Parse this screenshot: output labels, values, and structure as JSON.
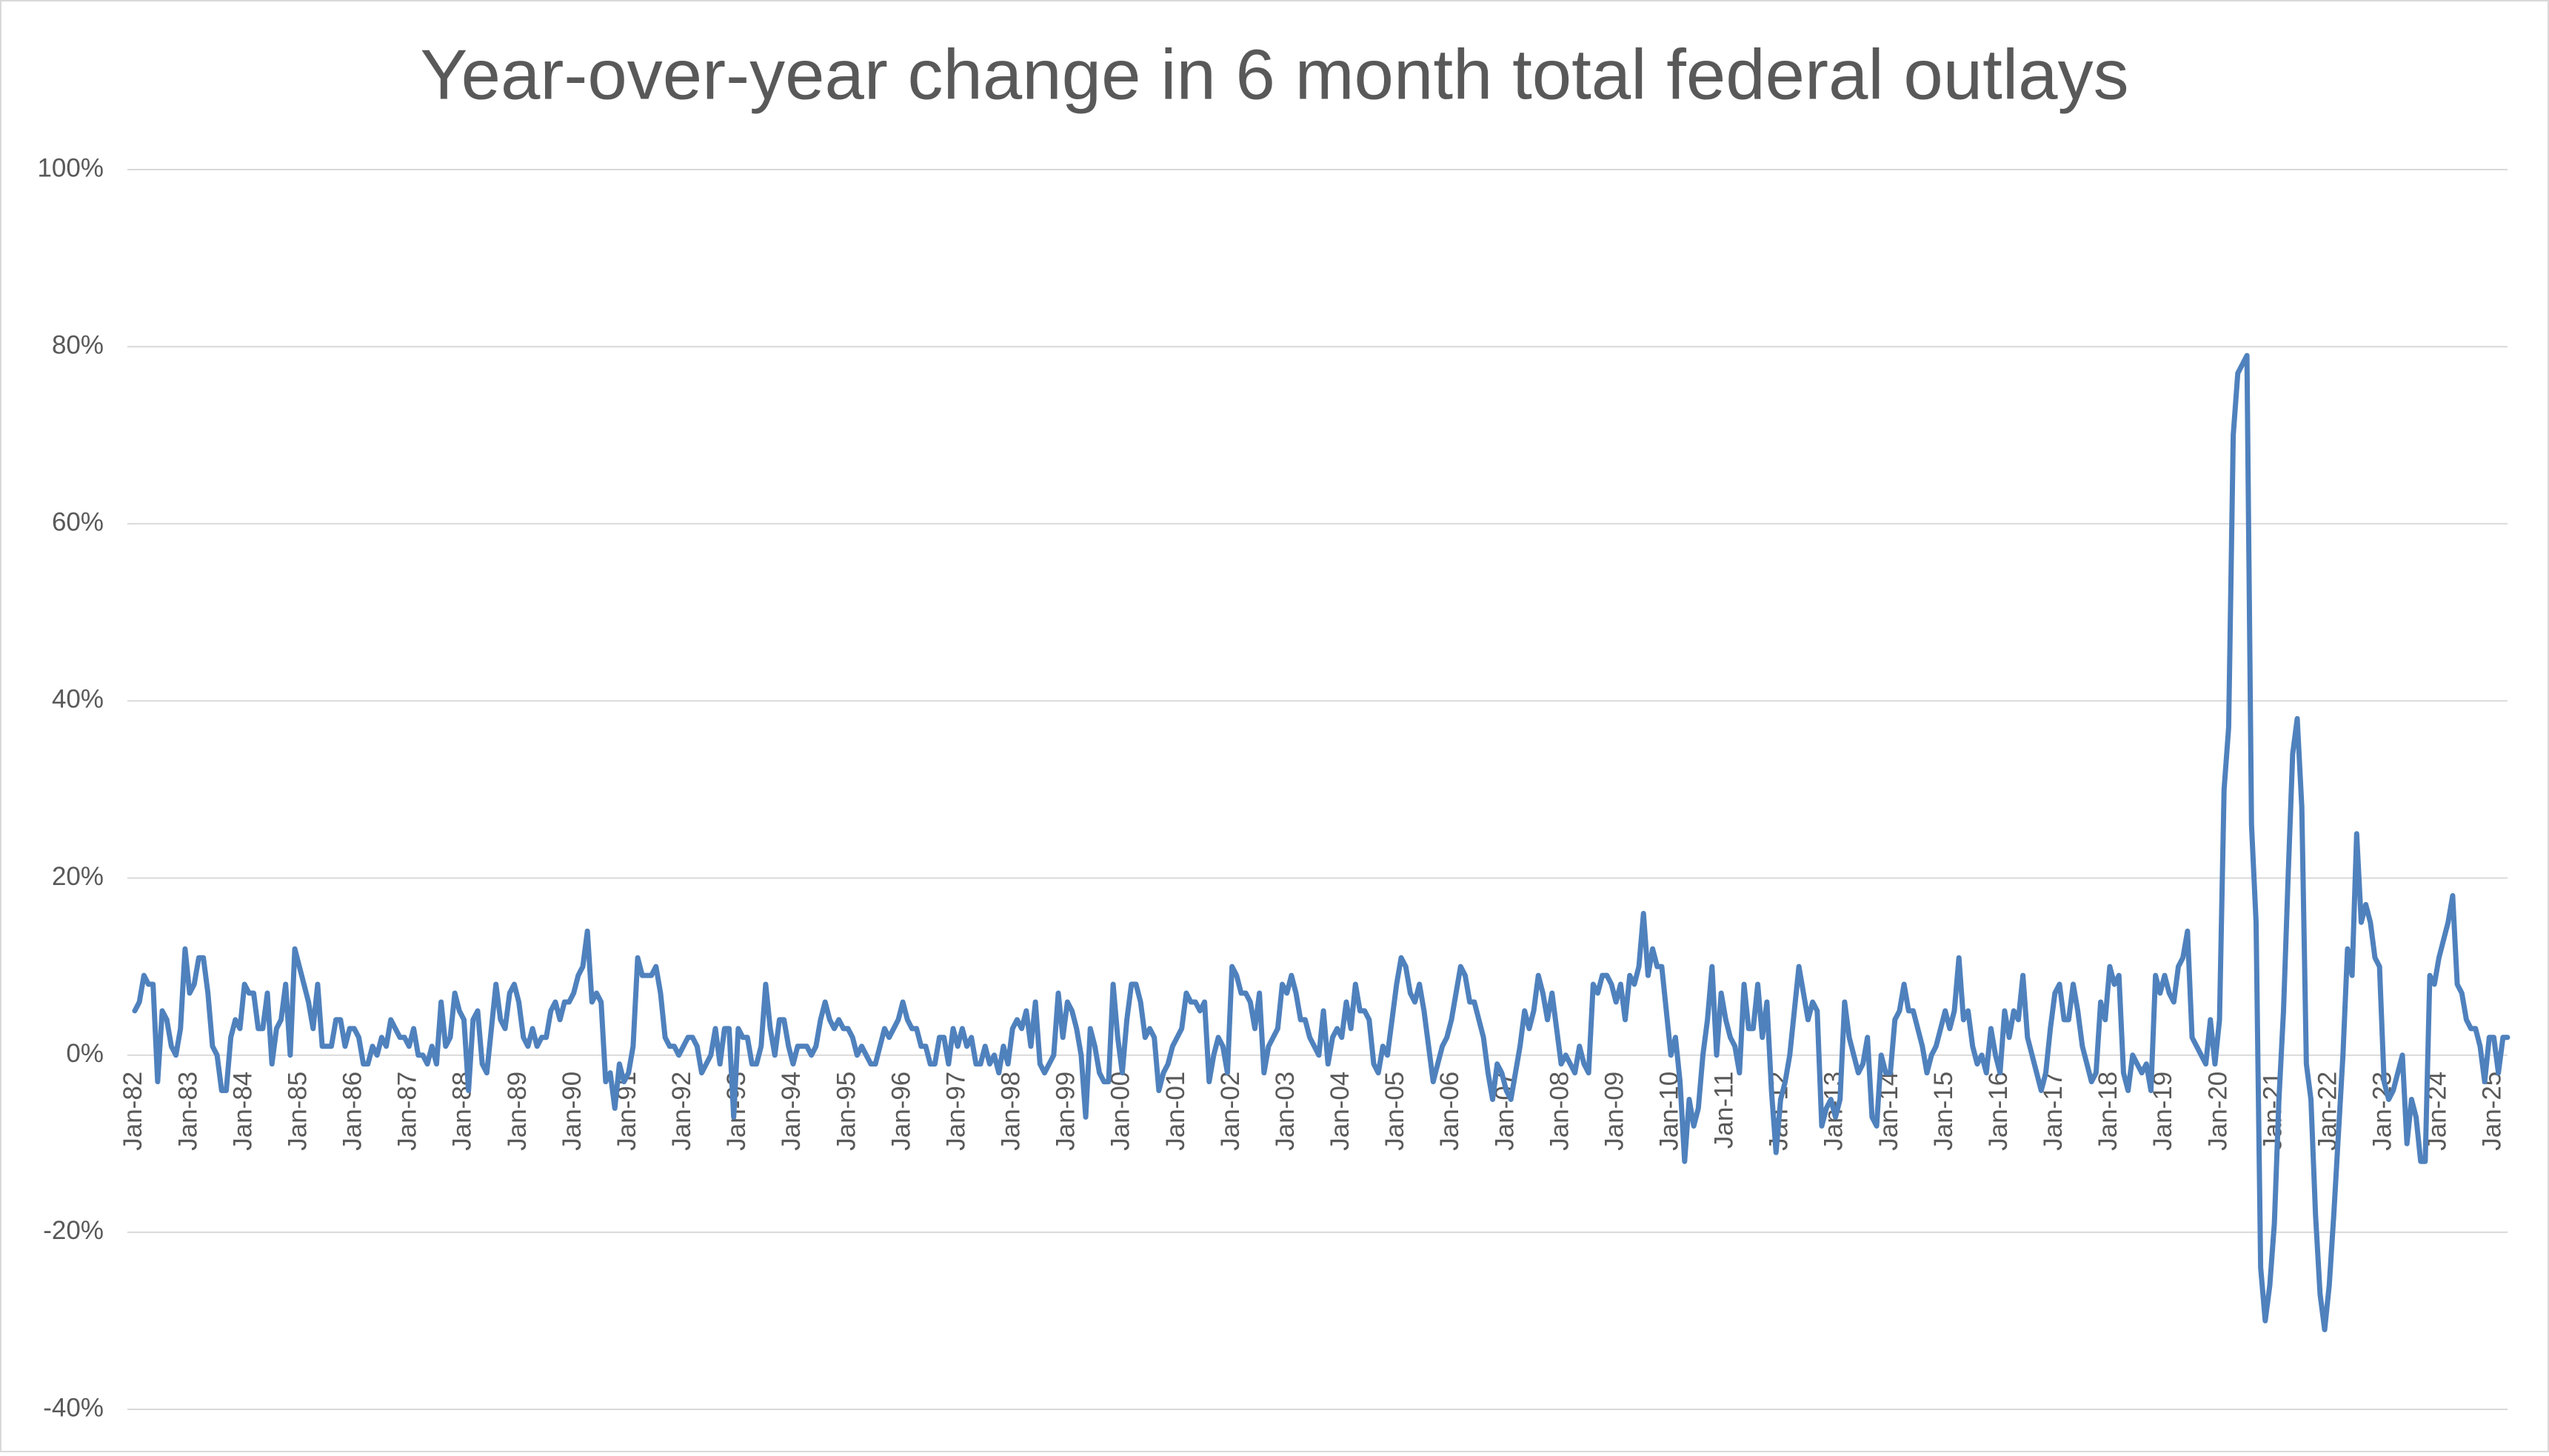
{
  "chart_data": {
    "type": "line",
    "title": "Year-over-year change in 6 month total federal outlays",
    "color": "#4f81bd",
    "grid": true,
    "ylim": [
      -40,
      100
    ],
    "yticks": [
      {
        "value": -40,
        "label": "-40%"
      },
      {
        "value": -20,
        "label": "-20%"
      },
      {
        "value": 0,
        "label": "0%"
      },
      {
        "value": 20,
        "label": "20%"
      },
      {
        "value": 40,
        "label": "40%"
      },
      {
        "value": 60,
        "label": "60%"
      },
      {
        "value": 80,
        "label": "80%"
      },
      {
        "value": 100,
        "label": "100%"
      }
    ],
    "categories": [
      "Jan-82",
      null,
      null,
      null,
      null,
      null,
      null,
      null,
      null,
      null,
      null,
      null,
      "Jan-83",
      null,
      null,
      null,
      null,
      null,
      null,
      null,
      null,
      null,
      null,
      null,
      "Jan-84",
      null,
      null,
      null,
      null,
      null,
      null,
      null,
      null,
      null,
      null,
      null,
      "Jan-85",
      null,
      null,
      null,
      null,
      null,
      null,
      null,
      null,
      null,
      null,
      null,
      "Jan-86",
      null,
      null,
      null,
      null,
      null,
      null,
      null,
      null,
      null,
      null,
      null,
      "Jan-87",
      null,
      null,
      null,
      null,
      null,
      null,
      null,
      null,
      null,
      null,
      null,
      "Jan-88",
      null,
      null,
      null,
      null,
      null,
      null,
      null,
      null,
      null,
      null,
      null,
      "Jan-89",
      null,
      null,
      null,
      null,
      null,
      null,
      null,
      null,
      null,
      null,
      null,
      "Jan-90",
      null,
      null,
      null,
      null,
      null,
      null,
      null,
      null,
      null,
      null,
      null,
      "Jan-91",
      null,
      null,
      null,
      null,
      null,
      null,
      null,
      null,
      null,
      null,
      null,
      "Jan-92",
      null,
      null,
      null,
      null,
      null,
      null,
      null,
      null,
      null,
      null,
      null,
      "Jan-93",
      null,
      null,
      null,
      null,
      null,
      null,
      null,
      null,
      null,
      null,
      null,
      "Jan-94",
      null,
      null,
      null,
      null,
      null,
      null,
      null,
      null,
      null,
      null,
      null,
      "Jan-95",
      null,
      null,
      null,
      null,
      null,
      null,
      null,
      null,
      null,
      null,
      null,
      "Jan-96",
      null,
      null,
      null,
      null,
      null,
      null,
      null,
      null,
      null,
      null,
      null,
      "Jan-97",
      null,
      null,
      null,
      null,
      null,
      null,
      null,
      null,
      null,
      null,
      null,
      "Jan-98",
      null,
      null,
      null,
      null,
      null,
      null,
      null,
      null,
      null,
      null,
      null,
      "Jan-99",
      null,
      null,
      null,
      null,
      null,
      null,
      null,
      null,
      null,
      null,
      null,
      "Jan-00",
      null,
      null,
      null,
      null,
      null,
      null,
      null,
      null,
      null,
      null,
      null,
      "Jan-01",
      null,
      null,
      null,
      null,
      null,
      null,
      null,
      null,
      null,
      null,
      null,
      "Jan-02",
      null,
      null,
      null,
      null,
      null,
      null,
      null,
      null,
      null,
      null,
      null,
      "Jan-03",
      null,
      null,
      null,
      null,
      null,
      null,
      null,
      null,
      null,
      null,
      null,
      "Jan-04",
      null,
      null,
      null,
      null,
      null,
      null,
      null,
      null,
      null,
      null,
      null,
      "Jan-05",
      null,
      null,
      null,
      null,
      null,
      null,
      null,
      null,
      null,
      null,
      null,
      "Jan-06",
      null,
      null,
      null,
      null,
      null,
      null,
      null,
      null,
      null,
      null,
      null,
      "Jan-07",
      null,
      null,
      null,
      null,
      null,
      null,
      null,
      null,
      null,
      null,
      null,
      "Jan-08",
      null,
      null,
      null,
      null,
      null,
      null,
      null,
      null,
      null,
      null,
      null,
      "Jan-09",
      null,
      null,
      null,
      null,
      null,
      null,
      null,
      null,
      null,
      null,
      null,
      "Jan-10",
      null,
      null,
      null,
      null,
      null,
      null,
      null,
      null,
      null,
      null,
      null,
      "Jan-11",
      null,
      null,
      null,
      null,
      null,
      null,
      null,
      null,
      null,
      null,
      null,
      "Jan-12",
      null,
      null,
      null,
      null,
      null,
      null,
      null,
      null,
      null,
      null,
      null,
      "Jan-13",
      null,
      null,
      null,
      null,
      null,
      null,
      null,
      null,
      null,
      null,
      null,
      "Jan-14",
      null,
      null,
      null,
      null,
      null,
      null,
      null,
      null,
      null,
      null,
      null,
      "Jan-15",
      null,
      null,
      null,
      null,
      null,
      null,
      null,
      null,
      null,
      null,
      null,
      "Jan-16",
      null,
      null,
      null,
      null,
      null,
      null,
      null,
      null,
      null,
      null,
      null,
      "Jan-17",
      null,
      null,
      null,
      null,
      null,
      null,
      null,
      null,
      null,
      null,
      null,
      "Jan-18",
      null,
      null,
      null,
      null,
      null,
      null,
      null,
      null,
      null,
      null,
      null,
      "Jan-19",
      null,
      null,
      null,
      null,
      null,
      null,
      null,
      null,
      null,
      null,
      null,
      "Jan-20",
      null,
      null,
      null,
      null,
      null,
      null,
      null,
      null,
      null,
      null,
      null,
      "Jan-21",
      null,
      null,
      null,
      null,
      null,
      null,
      null,
      null,
      null,
      null,
      null,
      "Jan-22",
      null,
      null,
      null,
      null,
      null,
      null,
      null,
      null,
      null,
      null,
      null,
      "Jan-23",
      null,
      null,
      null,
      null,
      null,
      null,
      null,
      null,
      null,
      null,
      null,
      "Jan-24",
      null,
      null,
      null,
      null,
      null,
      null,
      null,
      null,
      null,
      null,
      null,
      "Jan-25",
      null,
      null,
      null
    ],
    "values": [
      5,
      6,
      9,
      8,
      8,
      -3,
      5,
      4,
      1,
      0,
      3,
      12,
      7,
      8,
      11,
      11,
      7,
      1,
      0,
      -4,
      -4,
      2,
      4,
      3,
      8,
      7,
      7,
      3,
      3,
      7,
      -1,
      3,
      4,
      8,
      0,
      12,
      10,
      8,
      6,
      3,
      8,
      1,
      1,
      1,
      4,
      4,
      1,
      3,
      3,
      2,
      -1,
      -1,
      1,
      0,
      2,
      1,
      4,
      3,
      2,
      2,
      1,
      3,
      0,
      0,
      -1,
      1,
      -1,
      6,
      1,
      2,
      7,
      5,
      4,
      -4,
      4,
      5,
      -1,
      -2,
      3,
      8,
      4,
      3,
      7,
      8,
      6,
      2,
      1,
      3,
      1,
      2,
      2,
      5,
      6,
      4,
      6,
      6,
      7,
      9,
      10,
      14,
      6,
      7,
      6,
      -3,
      -2,
      -6,
      -1,
      -3,
      -2,
      1,
      11,
      9,
      9,
      9,
      10,
      7,
      2,
      1,
      1,
      0,
      1,
      2,
      2,
      1,
      -2,
      -1,
      0,
      3,
      -1,
      3,
      3,
      -7,
      3,
      2,
      2,
      -1,
      -1,
      1,
      8,
      3,
      0,
      4,
      4,
      1,
      -1,
      1,
      1,
      1,
      0,
      1,
      4,
      6,
      4,
      3,
      4,
      3,
      3,
      2,
      0,
      1,
      0,
      -1,
      -1,
      1,
      3,
      2,
      3,
      4,
      6,
      4,
      3,
      3,
      1,
      1,
      -1,
      -1,
      2,
      2,
      -1,
      3,
      1,
      3,
      1,
      2,
      -1,
      -1,
      1,
      -1,
      0,
      -2,
      1,
      -1,
      3,
      4,
      3,
      5,
      1,
      6,
      -1,
      -2,
      -1,
      0,
      7,
      2,
      6,
      5,
      3,
      0,
      -7,
      3,
      1,
      -2,
      -3,
      -3,
      8,
      2,
      -2,
      4,
      8,
      8,
      6,
      2,
      3,
      2,
      -4,
      -2,
      -1,
      1,
      2,
      3,
      7,
      6,
      6,
      5,
      6,
      -3,
      0,
      2,
      1,
      -2,
      10,
      9,
      7,
      7,
      6,
      3,
      7,
      -2,
      1,
      2,
      3,
      8,
      7,
      9,
      7,
      4,
      4,
      2,
      1,
      0,
      5,
      -1,
      2,
      3,
      2,
      6,
      3,
      8,
      5,
      5,
      4,
      -1,
      -2,
      1,
      0,
      4,
      8,
      11,
      10,
      7,
      6,
      8,
      5,
      1,
      -3,
      -1,
      1,
      2,
      4,
      7,
      10,
      9,
      6,
      6,
      4,
      2,
      -2,
      -5,
      -1,
      -2,
      -4,
      -5,
      -2,
      1,
      5,
      3,
      5,
      9,
      7,
      4,
      7,
      3,
      -1,
      0,
      -1,
      -2,
      1,
      -1,
      -2,
      8,
      7,
      9,
      9,
      8,
      6,
      8,
      4,
      9,
      8,
      10,
      16,
      9,
      12,
      10,
      10,
      5,
      0,
      2,
      -3,
      -12,
      -5,
      -8,
      -6,
      0,
      4,
      10,
      0,
      7,
      4,
      2,
      1,
      -2,
      8,
      3,
      3,
      8,
      2,
      6,
      -4,
      -11,
      -5,
      -3,
      0,
      5,
      10,
      7,
      4,
      6,
      5,
      -8,
      -6,
      -5,
      -7,
      -5,
      6,
      2,
      0,
      -2,
      -1,
      2,
      -7,
      -8,
      0,
      -2,
      -2,
      4,
      5,
      8,
      5,
      5,
      3,
      1,
      -2,
      0,
      1,
      3,
      5,
      3,
      5,
      11,
      4,
      5,
      1,
      -1,
      0,
      -2,
      3,
      0,
      -2,
      5,
      2,
      5,
      4,
      9,
      2,
      0,
      -2,
      -4,
      -2,
      3,
      7,
      8,
      4,
      4,
      8,
      5,
      1,
      -1,
      -3,
      -2,
      6,
      4,
      10,
      8,
      9,
      -2,
      -4,
      0,
      -1,
      -2,
      -1,
      -4,
      9,
      7,
      9,
      7,
      6,
      10,
      11,
      14,
      2,
      1,
      0,
      -1,
      4,
      -1,
      4,
      30,
      37,
      70,
      77,
      78,
      79,
      26,
      15,
      -24,
      -30,
      -26,
      -19,
      -5,
      5,
      20,
      34,
      38,
      28,
      -1,
      -5,
      -18,
      -27,
      -31,
      -26,
      -18,
      -9,
      0,
      12,
      9,
      25,
      15,
      17,
      15,
      11,
      10,
      -3,
      -5,
      -4,
      -2,
      0,
      -10,
      -5,
      -7,
      -12,
      -12,
      9,
      8,
      11,
      13,
      15,
      18,
      8,
      7,
      4,
      3,
      3,
      1,
      -3,
      2,
      2,
      -2,
      2,
      2
    ]
  }
}
